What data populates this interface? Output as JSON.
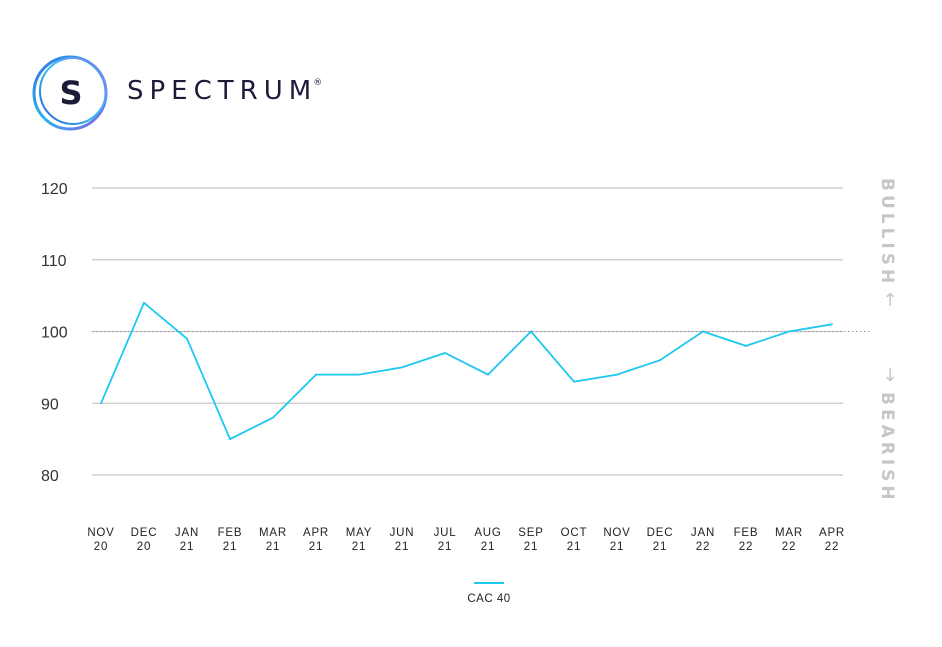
{
  "brand": {
    "name": "SPECTRUM",
    "mark": "S",
    "trademark": "®"
  },
  "colors": {
    "series": "#1ec8ef",
    "grid": "#c8c8c8",
    "reference_line": "#9a9a9a"
  },
  "chart_data": {
    "type": "line",
    "title": "",
    "xlabel": "",
    "ylabel": "",
    "ylim": [
      80,
      120
    ],
    "yticks": [
      80,
      90,
      100,
      110,
      120
    ],
    "grid": true,
    "reference_line": 100,
    "legend_position": "bottom-center",
    "categories": [
      [
        "NOV",
        "20"
      ],
      [
        "DEC",
        "20"
      ],
      [
        "JAN",
        "21"
      ],
      [
        "FEB",
        "21"
      ],
      [
        "MAR",
        "21"
      ],
      [
        "APR",
        "21"
      ],
      [
        "MAY",
        "21"
      ],
      [
        "JUN",
        "21"
      ],
      [
        "JUL",
        "21"
      ],
      [
        "AUG",
        "21"
      ],
      [
        "SEP",
        "21"
      ],
      [
        "OCT",
        "21"
      ],
      [
        "NOV",
        "21"
      ],
      [
        "DEC",
        "21"
      ],
      [
        "JAN",
        "22"
      ],
      [
        "FEB",
        "22"
      ],
      [
        "MAR",
        "22"
      ],
      [
        "APR",
        "22"
      ]
    ],
    "series": [
      {
        "name": "CAC 40",
        "values": [
          90,
          104,
          99,
          85,
          88,
          94,
          94,
          95,
          97,
          94,
          100,
          93,
          94,
          96,
          100,
          98,
          100,
          101
        ]
      }
    ],
    "annotations": {
      "upper": "BULLISH",
      "lower": "BEARISH",
      "arrow_up": "↑",
      "arrow_down": "↓"
    }
  }
}
